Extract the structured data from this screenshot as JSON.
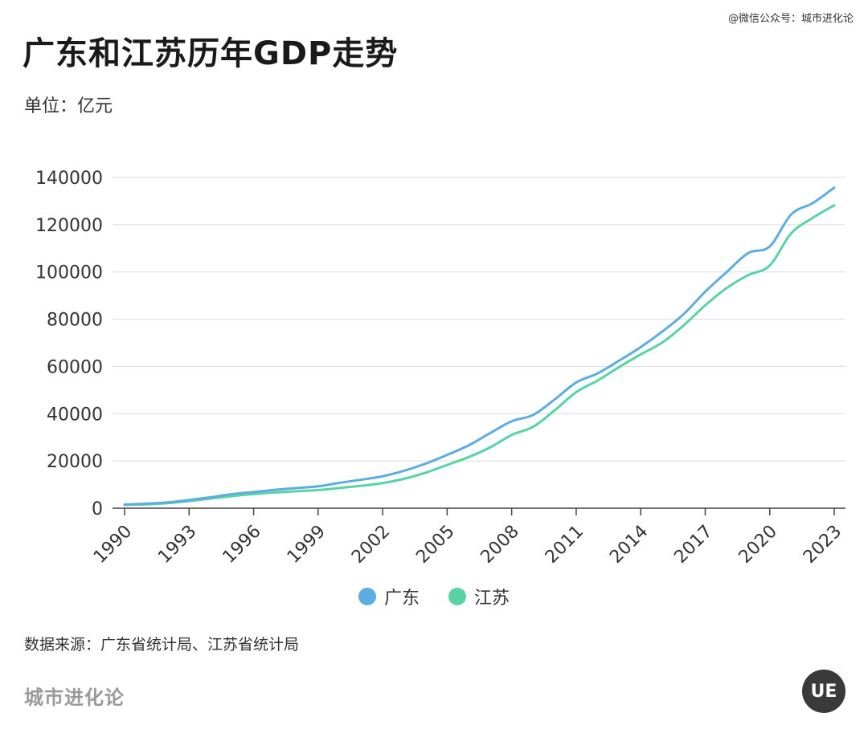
{
  "credit": "@微信公众号：城市进化论",
  "title": "广东和江苏历年GDP走势",
  "unit": "单位：亿元",
  "source": "数据来源：广东省统计局、江苏省统计局",
  "brand": "城市进化论",
  "logo_text": "UE",
  "chart_data": {
    "type": "line",
    "title": "广东和江苏历年GDP走势",
    "ylabel": "单位：亿元",
    "x": [
      1990,
      1991,
      1992,
      1993,
      1994,
      1995,
      1996,
      1997,
      1998,
      1999,
      2000,
      2001,
      2002,
      2003,
      2004,
      2005,
      2006,
      2007,
      2008,
      2009,
      2010,
      2011,
      2012,
      2013,
      2014,
      2015,
      2016,
      2017,
      2018,
      2019,
      2020,
      2021,
      2022,
      2023
    ],
    "x_ticks": [
      "1990",
      "1993",
      "1996",
      "1999",
      "2002",
      "2005",
      "2008",
      "2011",
      "2014",
      "2017",
      "2020",
      "2023"
    ],
    "y_ticks": [
      "0",
      "20000",
      "40000",
      "60000",
      "80000",
      "100000",
      "120000",
      "140000"
    ],
    "ylim": [
      0,
      140000
    ],
    "grid": true,
    "legend_position": "bottom",
    "series": [
      {
        "name": "广东",
        "color": "#5dade2",
        "values": [
          1559,
          1893,
          2447,
          3469,
          4619,
          5933,
          6835,
          7774,
          8531,
          9250,
          10741,
          12039,
          13502,
          15845,
          18865,
          22557,
          26588,
          31777,
          36797,
          39483,
          46013,
          53210,
          57068,
          62474,
          68173,
          74732,
          82163,
          91649,
          99945,
          107987,
          110761,
          124370,
          129118,
          135673
        ]
      },
      {
        "name": "江苏",
        "color": "#58d3a4",
        "values": [
          1417,
          1601,
          2136,
          2998,
          4057,
          5155,
          6004,
          6680,
          7200,
          7698,
          8554,
          9457,
          10607,
          12452,
          15004,
          18306,
          21645,
          25741,
          30982,
          34457,
          41425,
          49110,
          54058,
          59753,
          65088,
          70116,
          77388,
          85870,
          93207,
          98657,
          102719,
          116364,
          122876,
          128222
        ]
      }
    ]
  }
}
